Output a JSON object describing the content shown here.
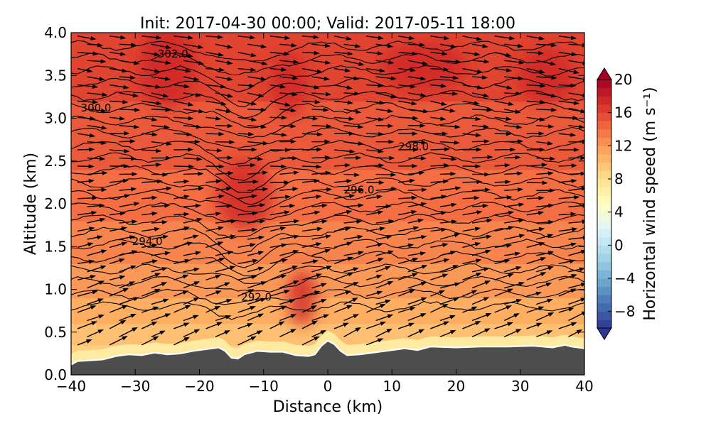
{
  "chart_data": {
    "type": "heatmap",
    "title": "Init: 2017-04-30 00:00; Valid: 2017-05-11 18:00",
    "xlabel": "Distance (km)",
    "ylabel": "Altitude (km)",
    "xlim": [
      -40,
      40
    ],
    "ylim": [
      0.0,
      4.0
    ],
    "xticks": [
      -40,
      -30,
      -20,
      -10,
      0,
      10,
      20,
      30,
      40
    ],
    "yticks": [
      0.0,
      0.5,
      1.0,
      1.5,
      2.0,
      2.5,
      3.0,
      3.5,
      4.0
    ],
    "xtick_labels": [
      "−40",
      "−30",
      "−20",
      "−10",
      "0",
      "10",
      "20",
      "30",
      "40"
    ],
    "ytick_labels": [
      "0.0",
      "0.5",
      "1.0",
      "1.5",
      "2.0",
      "2.5",
      "3.0",
      "3.5",
      "4.0"
    ],
    "colorbar": {
      "label": "Horizontal wind speed (m s⁻¹)",
      "range": [
        -10,
        20
      ],
      "step": 1,
      "extend": "both",
      "colormap": "RdYlBu_r",
      "ticks": [
        -8,
        -4,
        0,
        4,
        8,
        12,
        16,
        20
      ],
      "tick_labels": [
        "−8",
        "−4",
        "0",
        "4",
        "8",
        "12",
        "16",
        "20"
      ]
    },
    "terrain": {
      "color": "#4d4d4d",
      "x": [
        -40,
        -39,
        -37,
        -35,
        -33,
        -31,
        -29,
        -27,
        -25,
        -23,
        -21,
        -19,
        -17,
        -16,
        -15,
        -14,
        -13,
        -11,
        -9,
        -7,
        -5,
        -3,
        -2,
        -1,
        0,
        1,
        2,
        3,
        5,
        8,
        10,
        12,
        14,
        16,
        20,
        24,
        28,
        32,
        35,
        37,
        38,
        40
      ],
      "y": [
        0.12,
        0.16,
        0.17,
        0.18,
        0.22,
        0.24,
        0.23,
        0.26,
        0.24,
        0.25,
        0.28,
        0.3,
        0.32,
        0.28,
        0.2,
        0.19,
        0.24,
        0.28,
        0.27,
        0.27,
        0.23,
        0.22,
        0.24,
        0.34,
        0.4,
        0.36,
        0.28,
        0.23,
        0.24,
        0.27,
        0.29,
        0.31,
        0.29,
        0.33,
        0.32,
        0.33,
        0.33,
        0.34,
        0.32,
        0.35,
        0.33,
        0.31
      ]
    },
    "theta_contour_labels": [
      {
        "text": "302.0",
        "x": -26.5,
        "y": 3.75
      },
      {
        "text": "300.0",
        "x": -38.5,
        "y": 3.12
      },
      {
        "text": "298.0",
        "x": 11.0,
        "y": 2.67
      },
      {
        "text": "296.0",
        "x": 2.5,
        "y": 2.16
      },
      {
        "text": "294.0",
        "x": -30.5,
        "y": 1.56
      },
      {
        "text": "292.0",
        "x": -13.5,
        "y": 0.91
      }
    ]
  }
}
